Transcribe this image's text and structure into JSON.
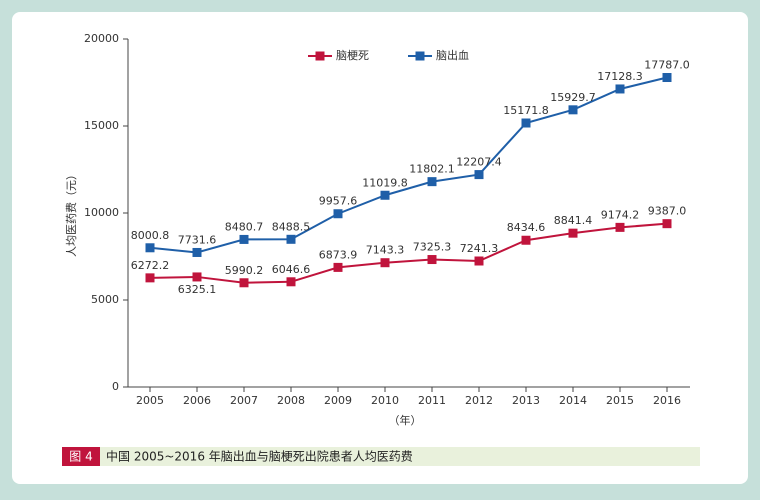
{
  "chart_data": {
    "type": "line",
    "caption_tag": "图 4",
    "caption": "中国 2005~2016 年脑出血与脑梗死出院患者人均医药费",
    "x_label": "（年）",
    "y_label": "人均医药费（元）",
    "categories": [
      "2005",
      "2006",
      "2007",
      "2008",
      "2009",
      "2010",
      "2011",
      "2012",
      "2013",
      "2014",
      "2015",
      "2016"
    ],
    "series": [
      {
        "name": "脑梗死",
        "color": "#c0143c",
        "values": [
          6272.2,
          6325.1,
          5990.2,
          6046.6,
          6873.9,
          7143.3,
          7325.3,
          7241.3,
          8434.6,
          8841.4,
          9174.2,
          9387.0
        ],
        "value_labels": [
          "6272.2",
          "6325.1",
          "5990.2",
          "6046.6",
          "6873.9",
          "7143.3",
          "7325.3",
          "7241.3",
          "8434.6",
          "8841.4",
          "9174.2",
          "9387.0"
        ]
      },
      {
        "name": "脑出血",
        "color": "#1f5fa8",
        "values": [
          8000.8,
          7731.6,
          8480.7,
          8488.5,
          9957.6,
          11019.8,
          11802.1,
          12207.4,
          15171.8,
          15929.7,
          17128.3,
          17787.0
        ],
        "value_labels": [
          "8000.8",
          "7731.6",
          "8480.7",
          "8488.5",
          "9957.6",
          "11019.8",
          "11802.1",
          "12207.4",
          "15171.8",
          "15929.7",
          "17128.3",
          "17787.0"
        ]
      }
    ],
    "ylim": [
      0,
      20000
    ],
    "yticks": [
      0,
      5000,
      10000,
      15000,
      20000
    ],
    "grid": false
  }
}
